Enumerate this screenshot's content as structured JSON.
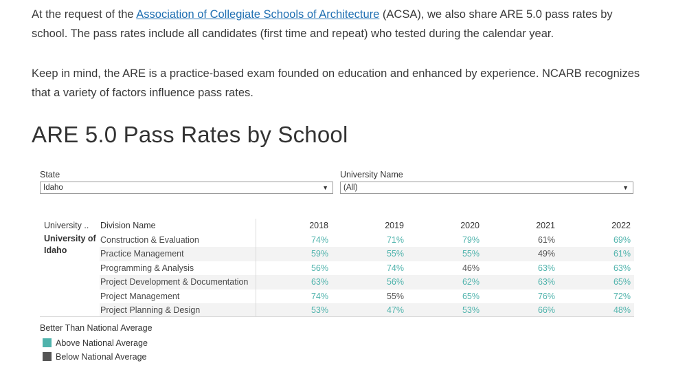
{
  "intro": {
    "p1_before": "At the request of the ",
    "p1_link": "Association of Collegiate Schools of Architecture",
    "p1_after": " (ACSA), we also share ARE 5.0 pass rates by school. The pass rates include all candidates (first time and repeat) who tested during the calendar year.",
    "p2": "Keep in mind, the ARE is a practice-based exam founded on education and enhanced by experience. NCARB recognizes that a variety of factors influence pass rates."
  },
  "title": "ARE 5.0 Pass Rates by School",
  "filters": {
    "state_label": "State",
    "state_value": "Idaho",
    "university_label": "University Name",
    "university_value": "(All)"
  },
  "table": {
    "headers": {
      "university": "University ..",
      "division": "Division Name",
      "years": [
        "2018",
        "2019",
        "2020",
        "2021",
        "2022"
      ]
    },
    "university_name": "University of Idaho",
    "rows": [
      {
        "division": "Construction & Evaluation",
        "values": [
          "74%",
          "71%",
          "79%",
          "61%",
          "69%"
        ],
        "above": [
          true,
          true,
          true,
          false,
          true
        ]
      },
      {
        "division": "Practice Management",
        "values": [
          "59%",
          "55%",
          "55%",
          "49%",
          "61%"
        ],
        "above": [
          true,
          true,
          true,
          false,
          true
        ]
      },
      {
        "division": "Programming & Analysis",
        "values": [
          "56%",
          "74%",
          "46%",
          "63%",
          "63%"
        ],
        "above": [
          true,
          true,
          false,
          true,
          true
        ]
      },
      {
        "division": "Project Development & Documentation",
        "values": [
          "63%",
          "56%",
          "62%",
          "63%",
          "65%"
        ],
        "above": [
          true,
          true,
          true,
          true,
          true
        ]
      },
      {
        "division": "Project Management",
        "values": [
          "74%",
          "55%",
          "65%",
          "76%",
          "72%"
        ],
        "above": [
          true,
          false,
          true,
          true,
          true
        ]
      },
      {
        "division": "Project Planning & Design",
        "values": [
          "53%",
          "47%",
          "53%",
          "66%",
          "48%"
        ],
        "above": [
          true,
          true,
          true,
          true,
          true
        ]
      }
    ]
  },
  "legend": {
    "title": "Better Than National Average",
    "items": [
      {
        "label": "Above National Average",
        "color": "#4fb3ac"
      },
      {
        "label": "Below National Average",
        "color": "#555555"
      }
    ]
  },
  "colors": {
    "above": "#4fb3ac",
    "below": "#555555",
    "link": "#1f6fb2"
  }
}
